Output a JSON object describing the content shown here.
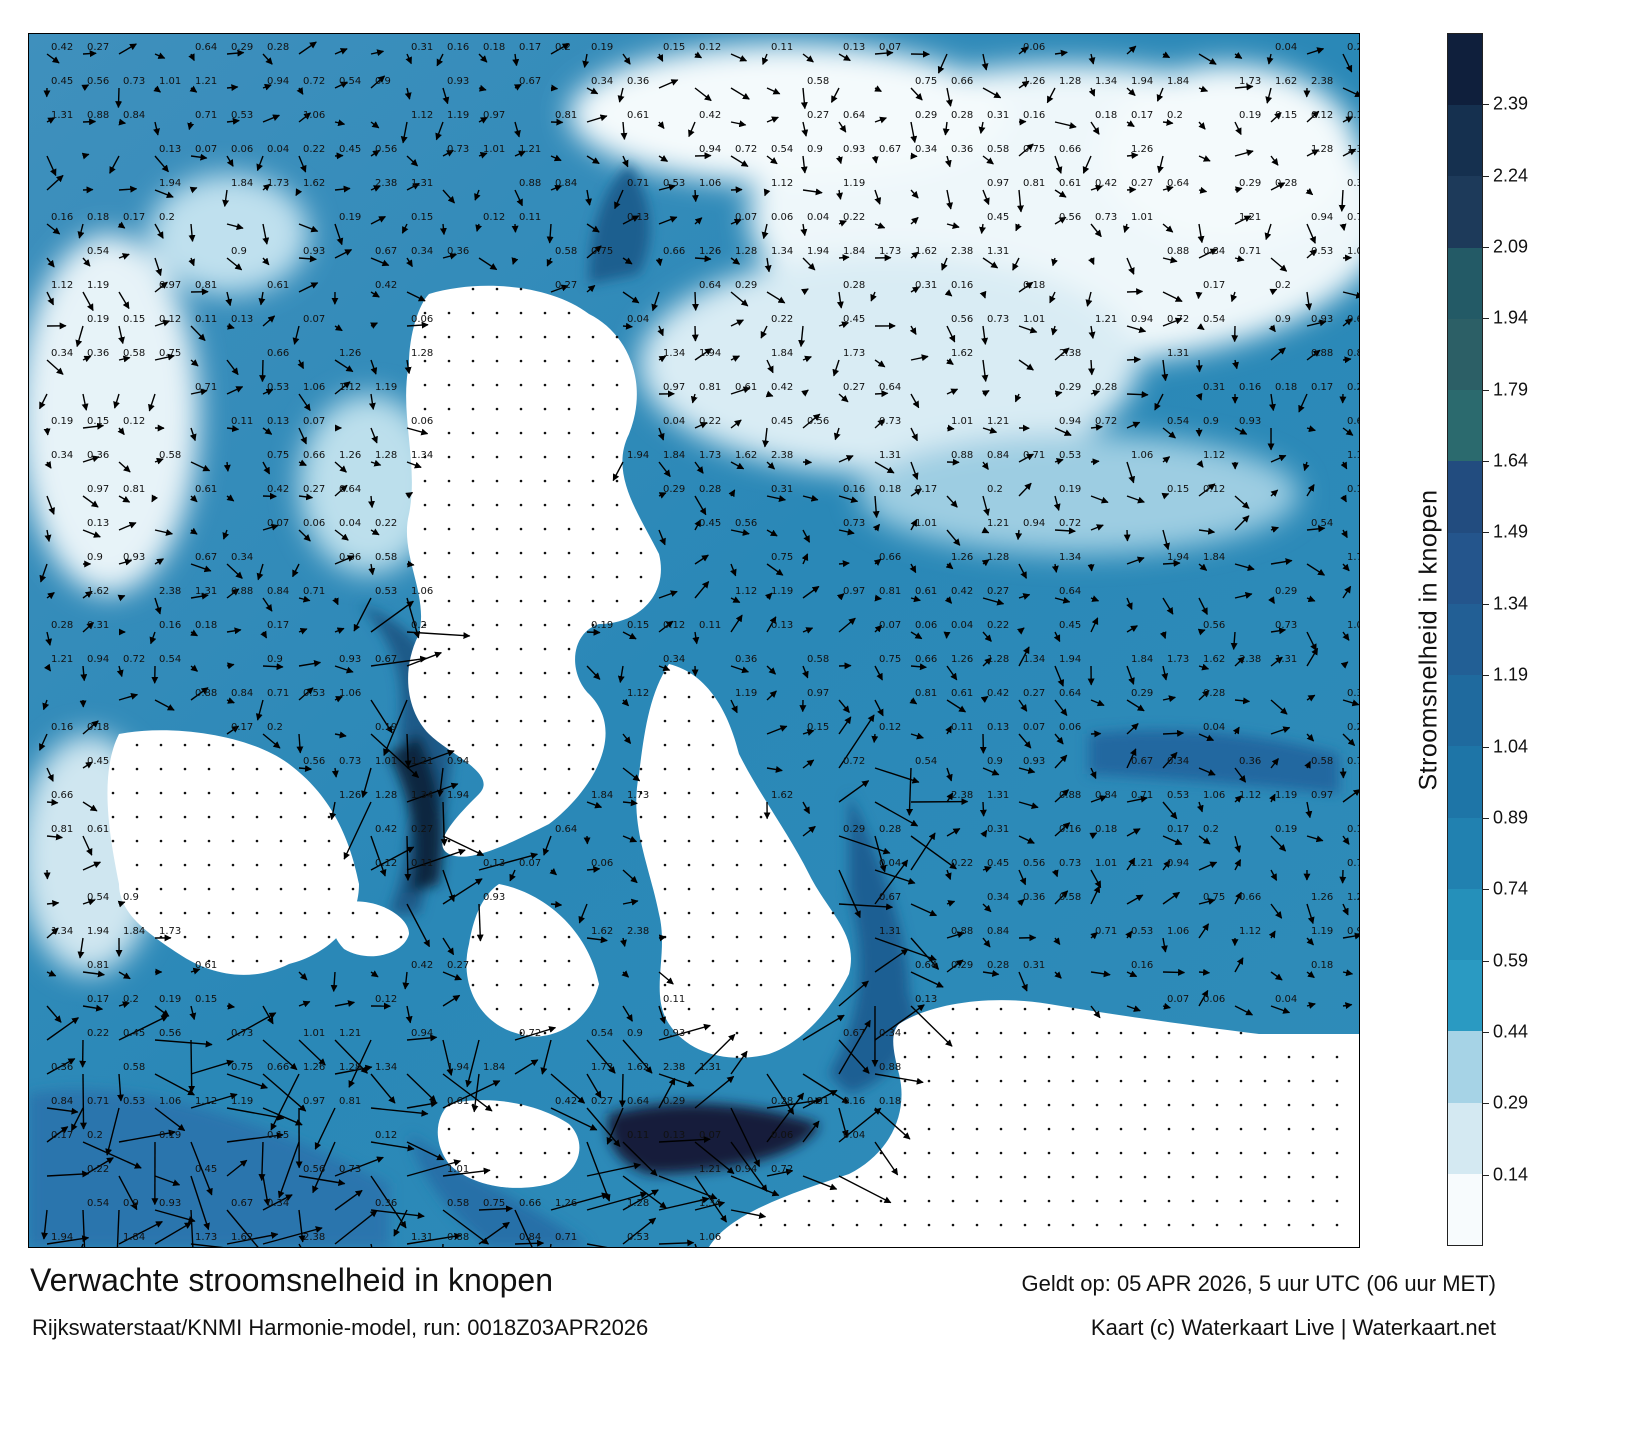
{
  "map": {
    "title": "Verwachte stroomsnelheid in knopen",
    "source": "Rijkswaterstaat/KNMI Harmonie-model, run: 0018Z03APR2026",
    "valid_time": "Geldt op: 05 APR 2026, 5 uur UTC (06 uur MET)",
    "credit": "Kaart (c) Waterkaart Live | Waterkaart.net"
  },
  "colorbar": {
    "title": "Stroomsnelheid in knopen",
    "ticks": [
      "0.14",
      "0.29",
      "0.44",
      "0.59",
      "0.74",
      "0.89",
      "1.04",
      "1.19",
      "1.34",
      "1.49",
      "1.64",
      "1.79",
      "1.94",
      "2.09",
      "2.24",
      "2.39"
    ],
    "colors": [
      "#f7fbfd",
      "#d4e9f2",
      "#a6d3e6",
      "#2a9ac2",
      "#2590ba",
      "#2181b0",
      "#1e75a7",
      "#1f6a9e",
      "#225f95",
      "#24558c",
      "#224c7f",
      "#2b6a6e",
      "#2c5f66",
      "#235a66",
      "#1d3a5a",
      "#15304f",
      "#0f1f3c"
    ]
  },
  "sample_values": [
    {
      "v": "0.42"
    },
    {
      "v": "0.27"
    },
    {
      "v": "0.64"
    },
    {
      "v": "0.29"
    },
    {
      "v": "0.28"
    },
    {
      "v": "0.31"
    },
    {
      "v": "0.16"
    },
    {
      "v": "0.18"
    },
    {
      "v": "0.17"
    },
    {
      "v": "0.2"
    },
    {
      "v": "0.19"
    },
    {
      "v": "0.15"
    },
    {
      "v": "0.12"
    },
    {
      "v": "0.11"
    },
    {
      "v": "0.13"
    },
    {
      "v": "0.07"
    },
    {
      "v": "0.06"
    },
    {
      "v": "0.04"
    },
    {
      "v": "0.22"
    },
    {
      "v": "0.45"
    },
    {
      "v": "0.56"
    },
    {
      "v": "0.73"
    },
    {
      "v": "1.01"
    },
    {
      "v": "1.21"
    },
    {
      "v": "0.94"
    },
    {
      "v": "0.72"
    },
    {
      "v": "0.54"
    },
    {
      "v": "0.9"
    },
    {
      "v": "0.93"
    },
    {
      "v": "0.67"
    },
    {
      "v": "0.34"
    },
    {
      "v": "0.36"
    },
    {
      "v": "0.58"
    },
    {
      "v": "0.75"
    },
    {
      "v": "0.66"
    },
    {
      "v": "1.26"
    },
    {
      "v": "1.28"
    },
    {
      "v": "1.34"
    },
    {
      "v": "1.94"
    },
    {
      "v": "1.84"
    },
    {
      "v": "1.73"
    },
    {
      "v": "1.62"
    },
    {
      "v": "2.38"
    },
    {
      "v": "1.31"
    },
    {
      "v": "0.88"
    },
    {
      "v": "0.84"
    },
    {
      "v": "0.71"
    },
    {
      "v": "0.53"
    },
    {
      "v": "1.06"
    },
    {
      "v": "1.12"
    },
    {
      "v": "1.19"
    },
    {
      "v": "0.97"
    },
    {
      "v": "0.81"
    },
    {
      "v": "0.61"
    }
  ]
}
